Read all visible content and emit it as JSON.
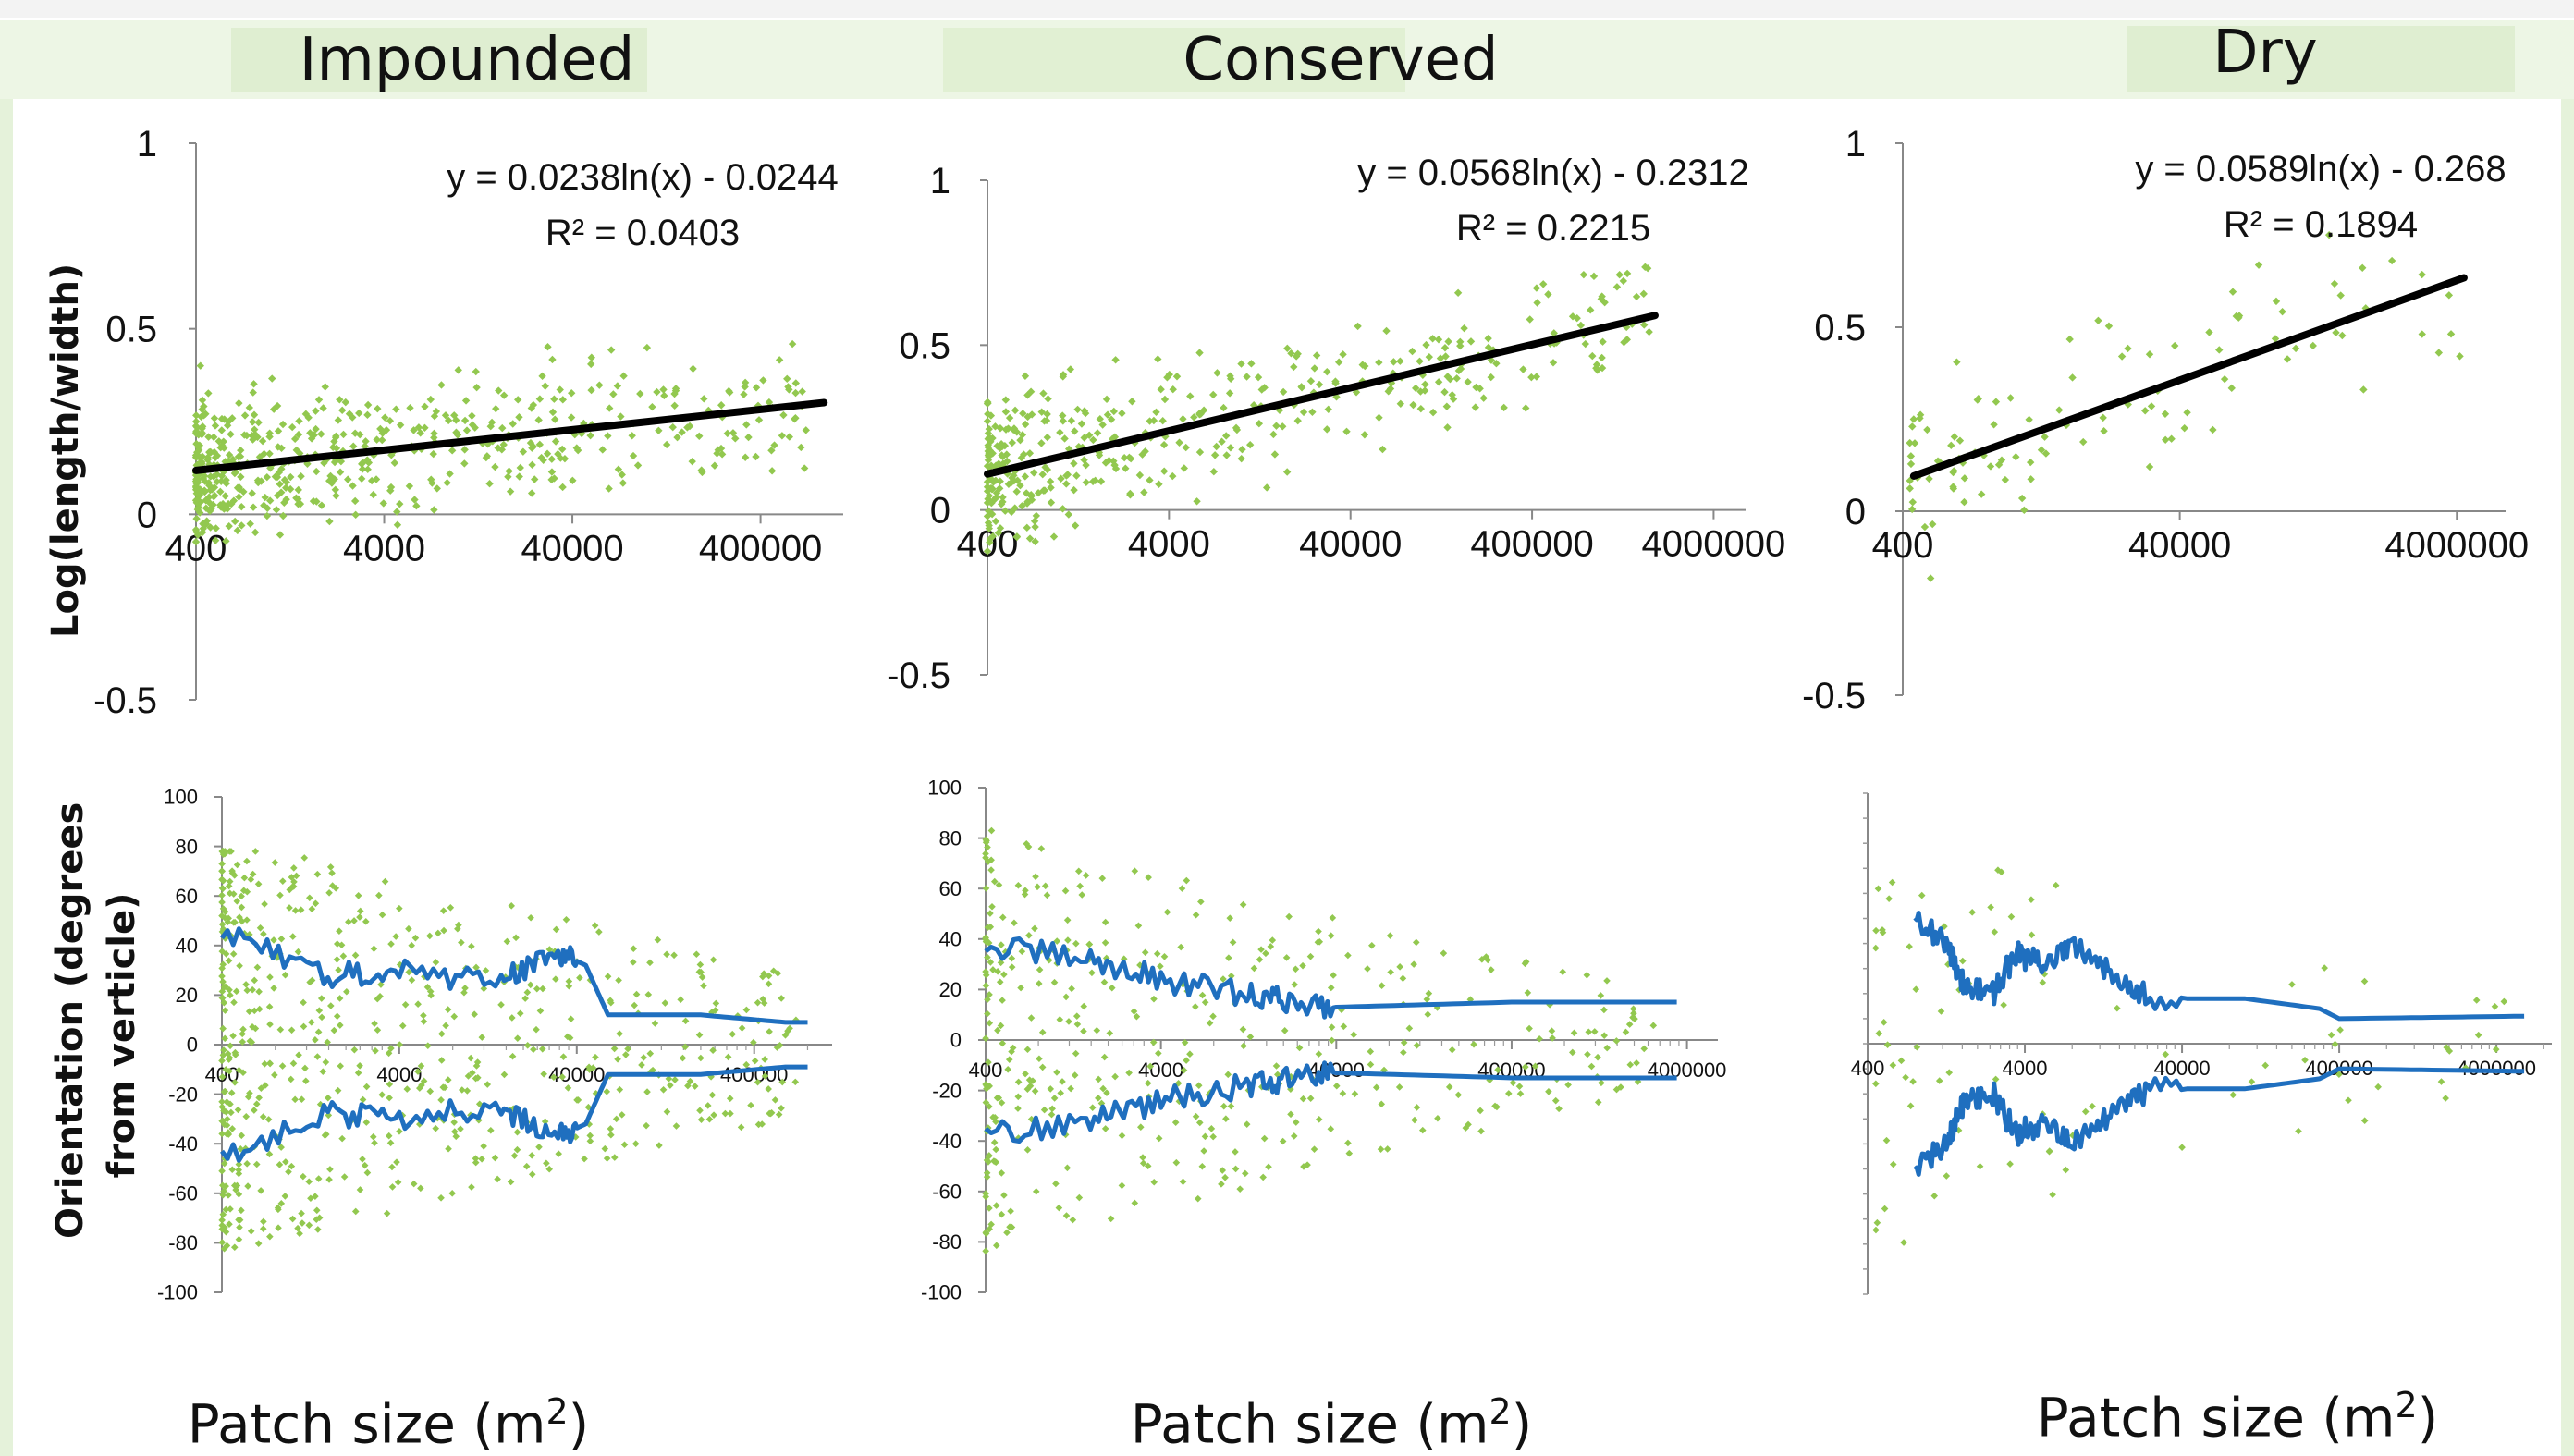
{
  "titles": [
    "Impounded",
    "Conserved",
    "Dry"
  ],
  "ylabel_top": "Log(length/width)",
  "ylabel_bottom": [
    "Orientation (degrees",
    "from verticle)"
  ],
  "xlabel": "Patch size (m",
  "xlabel_sup": "2",
  "xlabel_close": ")",
  "colors": {
    "points": "#92c84f",
    "trend": "#000000",
    "envelope": "#1f6fbf",
    "background_tint": "#e3f1d7"
  },
  "chart_data": [
    {
      "id": "impounded-top",
      "type": "scatter",
      "panel": "Impounded",
      "ylabel": "Log(length/width)",
      "xscale": "log",
      "xlim": [
        400,
        1100000
      ],
      "ylim": [
        -0.5,
        1
      ],
      "xticks": [
        400,
        4000,
        40000,
        400000
      ],
      "xtick_labels": [
        "400",
        "4000",
        "40000",
        "400000"
      ],
      "yticks": [
        -0.5,
        0,
        0.5,
        1
      ],
      "ytick_labels": [
        "-0.5",
        "0",
        "0.5",
        "1"
      ],
      "equation": "y = 0.0238ln(x) - 0.0244",
      "r2_label": "R² = 0.0403",
      "trend": {
        "a": 0.0238,
        "b": -0.0244,
        "from": 400,
        "to": 870000
      },
      "points_summary": {
        "n_approx": 560,
        "x_range": [
          400,
          700000
        ],
        "y_mean_trend": true,
        "y_spread": 0.13,
        "y_range": [
          -0.4,
          0.77
        ]
      }
    },
    {
      "id": "conserved-top",
      "type": "scatter",
      "panel": "Conserved",
      "xscale": "log",
      "xlim": [
        400,
        6000000
      ],
      "ylim": [
        -0.5,
        1
      ],
      "xticks": [
        400,
        4000,
        40000,
        400000,
        4000000
      ],
      "xtick_labels": [
        "400",
        "4000",
        "40000",
        "400000",
        "4000000"
      ],
      "yticks": [
        -0.5,
        0,
        0.5,
        1
      ],
      "ytick_labels": [
        "-0.5",
        "0",
        "0.5",
        "1"
      ],
      "equation": "y = 0.0568ln(x) - 0.2312",
      "r2_label": "R² = 0.2215",
      "trend": {
        "a": 0.0568,
        "b": -0.2312,
        "from": 400,
        "to": 1900000
      },
      "points_summary": {
        "n_approx": 430,
        "x_range": [
          400,
          1900000
        ],
        "y_spread": 0.15,
        "y_range": [
          -0.27,
          0.9
        ]
      }
    },
    {
      "id": "dry-top",
      "type": "scatter",
      "panel": "Dry",
      "xscale": "log",
      "xlim": [
        400,
        9000000
      ],
      "ylim": [
        -0.5,
        1
      ],
      "xticks": [
        400,
        40000,
        4000000
      ],
      "xtick_labels": [
        "400",
        "40000",
        "4000000"
      ],
      "yticks": [
        -0.5,
        0,
        0.5,
        1
      ],
      "ytick_labels": [
        "-0.5",
        "0",
        "0.5",
        "1"
      ],
      "equation": "y = 0.0589ln(x) - 0.268",
      "r2_label": "R² = 0.1894",
      "trend": {
        "a": 0.0589,
        "b": -0.268,
        "from": 480,
        "to": 4500000
      },
      "points_summary": {
        "n_approx": 110,
        "x_range": [
          450,
          4500000
        ],
        "y_spread": 0.15,
        "y_range": [
          -0.47,
          0.92
        ]
      }
    },
    {
      "id": "impounded-bottom",
      "type": "scatter",
      "panel": "Impounded",
      "ylabel": "Orientation (degrees from verticle)",
      "xscale": "log",
      "xlim": [
        400,
        1100000
      ],
      "ylim": [
        -100,
        100
      ],
      "xticks": [
        400,
        4000,
        40000,
        400000
      ],
      "xtick_labels": [
        "400",
        "4000",
        "40000",
        "400000"
      ],
      "yticks": [
        -100,
        -80,
        -60,
        -40,
        -20,
        0,
        20,
        40,
        60,
        80,
        100
      ],
      "ytick_labels": [
        "-100",
        "-80",
        "-60",
        "-40",
        "-20",
        "0",
        "20",
        "40",
        "60",
        "80",
        "100"
      ],
      "envelope": [
        [
          400,
          45
        ],
        [
          1500,
          28
        ],
        [
          4000,
          30
        ],
        [
          15000,
          25
        ],
        [
          30000,
          38
        ],
        [
          45000,
          32
        ],
        [
          60000,
          12
        ],
        [
          200000,
          12
        ],
        [
          600000,
          9
        ],
        [
          800000,
          9
        ]
      ],
      "points_summary": {
        "n_approx": 640,
        "x_range": [
          400,
          700000
        ],
        "y_range": [
          -97,
          78
        ]
      }
    },
    {
      "id": "conserved-bottom",
      "type": "scatter",
      "panel": "Conserved",
      "xscale": "log",
      "xlim": [
        400,
        6000000
      ],
      "ylim": [
        -100,
        100
      ],
      "xticks": [
        400,
        4000,
        40000,
        400000,
        4000000
      ],
      "xtick_labels": [
        "400",
        "4000",
        "40000",
        "400000",
        "4000000"
      ],
      "yticks": [
        -100,
        -80,
        -60,
        -40,
        -20,
        0,
        20,
        40,
        60,
        80,
        100
      ],
      "ytick_labels": [
        "-100",
        "-80",
        "-60",
        "-40",
        "-20",
        "0",
        "20",
        "40",
        "60",
        "80",
        "100"
      ],
      "envelope": [
        [
          400,
          37
        ],
        [
          1500,
          32
        ],
        [
          4000,
          24
        ],
        [
          12000,
          18
        ],
        [
          20000,
          16
        ],
        [
          40000,
          13
        ],
        [
          400000,
          15
        ],
        [
          3500000,
          15
        ]
      ],
      "points_summary": {
        "n_approx": 430,
        "x_range": [
          400,
          3000000
        ],
        "y_range": [
          -95,
          86
        ]
      }
    },
    {
      "id": "dry-bottom",
      "type": "scatter",
      "panel": "Dry",
      "xscale": "log",
      "xlim": [
        400,
        9000000
      ],
      "ylim": [
        -100,
        100
      ],
      "xticks": [
        400,
        4000,
        40000,
        400000,
        4000000
      ],
      "xtick_labels": [
        "400",
        "4000",
        "40000",
        "400000",
        "4000000"
      ],
      "envelope": [
        [
          800,
          52
        ],
        [
          1300,
          38
        ],
        [
          1700,
          22
        ],
        [
          2500,
          20
        ],
        [
          3500,
          36
        ],
        [
          5000,
          32
        ],
        [
          8000,
          38
        ],
        [
          14000,
          30
        ],
        [
          25000,
          18
        ],
        [
          100000,
          18
        ],
        [
          300000,
          14
        ],
        [
          400000,
          10
        ],
        [
          6000000,
          11
        ]
      ],
      "points_summary": {
        "n_approx": 90,
        "x_range": [
          450,
          6000000
        ],
        "y_range": [
          -88,
          82
        ]
      }
    }
  ]
}
